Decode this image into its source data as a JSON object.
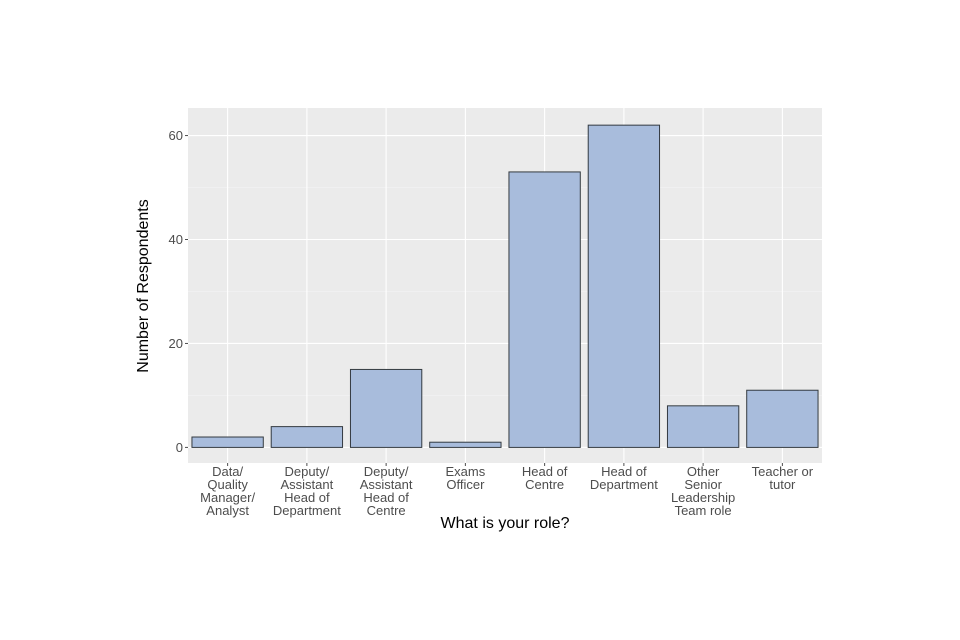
{
  "chart_data": {
    "type": "bar",
    "title": "",
    "xlabel": "What is your role?",
    "ylabel": "Number of Respondents",
    "categories": [
      [
        "Data/",
        "Quality",
        "Manager/",
        "Analyst"
      ],
      [
        "Deputy/",
        "Assistant",
        "Head of",
        "Department"
      ],
      [
        "Deputy/",
        "Assistant",
        "Head of",
        "Centre"
      ],
      [
        "Exams",
        "Officer"
      ],
      [
        "Head of",
        "Centre"
      ],
      [
        "Head of",
        "Department"
      ],
      [
        "Other",
        "Senior",
        "Leadership",
        "Team role"
      ],
      [
        "Teacher or",
        "tutor"
      ]
    ],
    "values": [
      2,
      4,
      15,
      1,
      53,
      62,
      8,
      11
    ],
    "yticks": [
      0,
      20,
      40,
      60
    ],
    "ylim": [
      -3,
      65.3
    ],
    "grid": true,
    "legend": "none",
    "colors": {
      "bar_fill": "#a8bcdc",
      "panel": "#ebebeb"
    }
  }
}
